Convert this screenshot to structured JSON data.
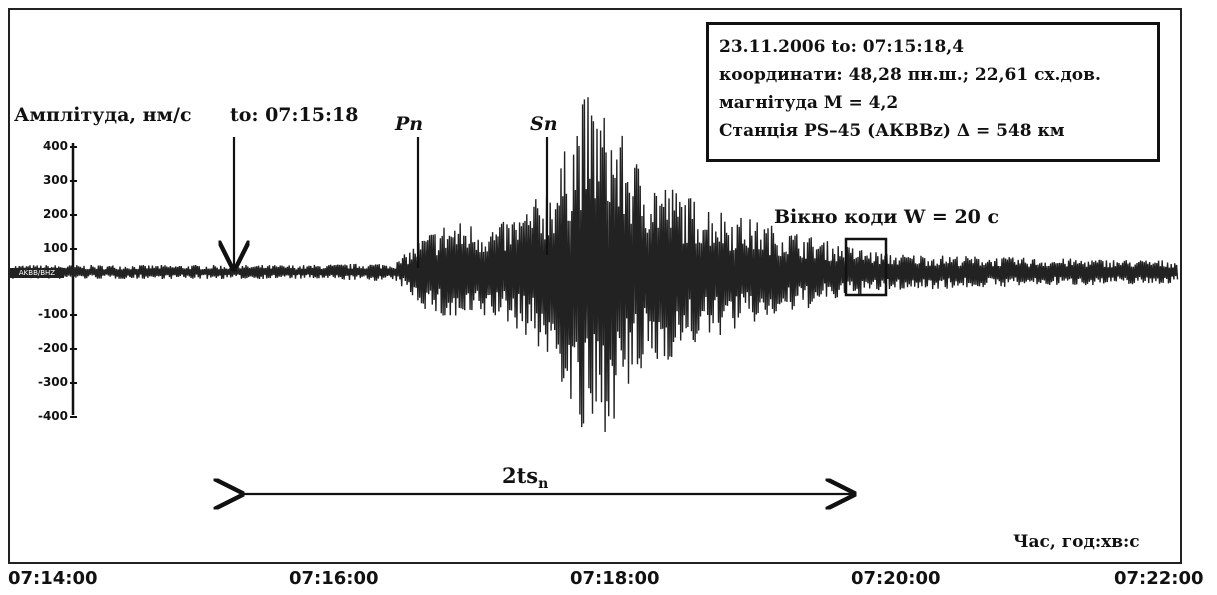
{
  "y_axis_label": "Амплітуда, нм/с",
  "origin_label": "to: 07:15:18",
  "station_tag": "AKBB/BHZ",
  "phase_pn": "Pn",
  "phase_sn": "Sn",
  "info": {
    "line1": "23.11.2006 to: 07:15:18,4",
    "line2": "координати: 48,28 пн.ш.; 22,61 сх.дов.",
    "line3": "магнітуда M = 4,2",
    "line4": "Станція PS–45 (АКВВz) Δ = 548 км"
  },
  "coda_window_label": "Вікно коди W = 20 с",
  "interval_label": "2ts",
  "interval_sub": "n",
  "x_axis_title": "Час, год:хв:с",
  "chart_data": {
    "type": "line",
    "ylabel": "Амплітуда, нм/с",
    "xlabel": "Час, год:хв:с",
    "ylim": [
      -400,
      400
    ],
    "yticks": [
      "400",
      "300",
      "200",
      "100",
      "-100",
      "-200",
      "-300",
      "-400"
    ],
    "xticks": [
      "07:14:00",
      "07:16:00",
      "07:18:00",
      "07:20:00",
      "07:22:00"
    ],
    "grid": false,
    "series": [
      {
        "x": [
          "07:14:00",
          "07:15:00",
          "07:15:18",
          "07:16:00",
          "07:16:38",
          "07:16:50",
          "07:17:00",
          "07:17:20",
          "07:17:33",
          "07:17:45",
          "07:17:55",
          "07:18:00",
          "07:18:10",
          "07:18:20",
          "07:18:40",
          "07:19:00",
          "07:19:20",
          "07:19:40",
          "07:20:00",
          "07:21:00",
          "07:22:00"
        ],
        "y": [
          15,
          15,
          15,
          15,
          20,
          80,
          110,
          100,
          140,
          220,
          380,
          370,
          300,
          220,
          160,
          120,
          90,
          60,
          40,
          30,
          25
        ]
      }
    ],
    "annotations": {
      "origin_time": "07:15:18",
      "pn_arrival": "07:16:38",
      "sn_arrival": "07:17:33",
      "coda_window": [
        "07:19:45",
        "07:20:05"
      ],
      "interval": [
        "07:15:18",
        "07:19:40"
      ]
    }
  }
}
